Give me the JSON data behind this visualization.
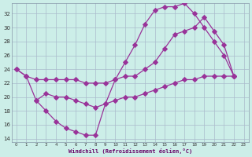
{
  "xlabel": "Windchill (Refroidissement éolien,°C)",
  "background_color": "#cceee8",
  "grid_color": "#aabbcc",
  "line_color": "#993399",
  "xlim": [
    -0.5,
    23.5
  ],
  "ylim": [
    13.5,
    33.5
  ],
  "yticks": [
    14,
    16,
    18,
    20,
    22,
    24,
    26,
    28,
    30,
    32
  ],
  "xticks": [
    0,
    1,
    2,
    3,
    4,
    5,
    6,
    7,
    8,
    9,
    10,
    11,
    12,
    13,
    14,
    15,
    16,
    17,
    18,
    19,
    20,
    21,
    22,
    23
  ],
  "series1_x": [
    0,
    1,
    2,
    3,
    4,
    5,
    6,
    7,
    8,
    9,
    10,
    11,
    12,
    13,
    14,
    15,
    16,
    17,
    18,
    19,
    20,
    21,
    22
  ],
  "series1_y": [
    24,
    23,
    19.5,
    18,
    16.5,
    15.5,
    15,
    14.5,
    14.5,
    19,
    22.5,
    25,
    27.5,
    30.5,
    32.5,
    33,
    33,
    33.5,
    32,
    30,
    28,
    26,
    23
  ],
  "series2_x": [
    0,
    1,
    2,
    3,
    4,
    5,
    6,
    7,
    8,
    9,
    10,
    11,
    12,
    13,
    14,
    15,
    16,
    17,
    18,
    19,
    20,
    21,
    22
  ],
  "series2_y": [
    24,
    23,
    22.5,
    22.5,
    22.5,
    22.5,
    22.5,
    22,
    22,
    22,
    22.5,
    23,
    23,
    24,
    25,
    27,
    29,
    29.5,
    30,
    31.5,
    29.5,
    27.5,
    23
  ],
  "series3_x": [
    2,
    3,
    4,
    5,
    6,
    7,
    8,
    9,
    10,
    11,
    12,
    13,
    14,
    15,
    16,
    17,
    18,
    19,
    20,
    21,
    22
  ],
  "series3_y": [
    19.5,
    20.5,
    20,
    20,
    19.5,
    19,
    18.5,
    19,
    19.5,
    20,
    20,
    20.5,
    21,
    21.5,
    22,
    22.5,
    22.5,
    23,
    23,
    23,
    23
  ]
}
